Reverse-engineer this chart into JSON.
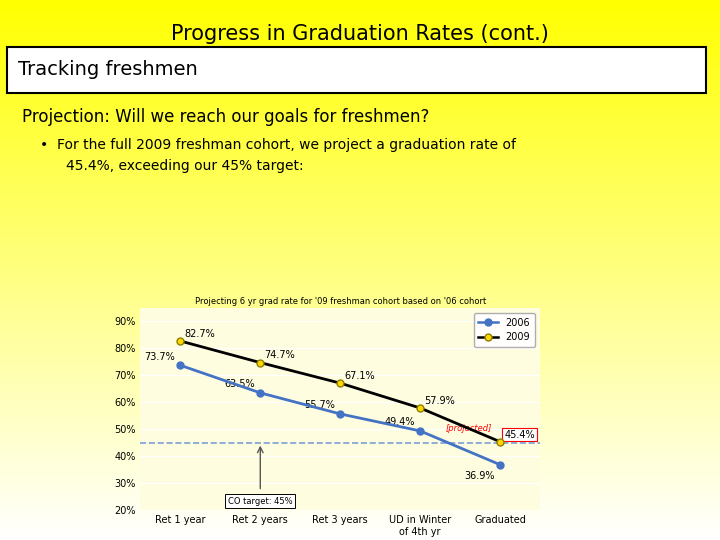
{
  "title": "Progress in Graduation Rates (cont.)",
  "section_header": "Tracking freshmen",
  "subtitle": "Projection: Will we reach our goals for freshmen?",
  "bullet_line1": "For the full 2009 freshman cohort, we project a graduation rate of",
  "bullet_line2": "45.4%, exceeding our 45% target:",
  "chart_title": "Projecting 6 yr grad rate for '09 freshman cohort based on '06 cohort",
  "x_labels": [
    "Ret 1 year",
    "Ret 2 years",
    "Ret 3 years",
    "UD in Winter\nof 4th yr",
    "Graduated"
  ],
  "series_2006": [
    73.7,
    63.5,
    55.7,
    49.4,
    36.9
  ],
  "series_2009": [
    82.7,
    74.7,
    67.1,
    57.9,
    45.4
  ],
  "series_2006_label": "2006",
  "series_2009_label": "2009",
  "color_2006": "#4472C4",
  "color_2009": "#FFD700",
  "line_color_2006": "#4472C4",
  "line_color_2009": "#000000",
  "marker_edge_2009": "#8B8000",
  "target_value": 45,
  "target_label": "CO target: 45%",
  "projected_label": "[projected]",
  "dashed_line_color": "#7B9FD4",
  "ylim": [
    20,
    95
  ],
  "yticks": [
    20,
    30,
    40,
    50,
    60,
    70,
    80,
    90
  ],
  "chart_bg": "#FFFDE0",
  "title_fontsize": 15,
  "header_fontsize": 14,
  "subtitle_fontsize": 12,
  "bullet_fontsize": 10,
  "chart_title_fontsize": 6,
  "axis_fontsize": 7,
  "label_fontsize": 7,
  "legend_fontsize": 7
}
